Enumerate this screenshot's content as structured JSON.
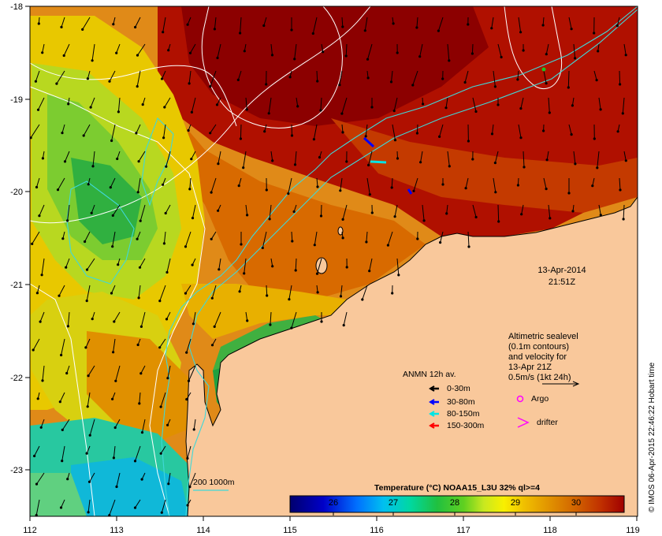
{
  "map": {
    "lon_ticks": [
      "112",
      "113",
      "114",
      "115",
      "116",
      "117",
      "118",
      "119"
    ],
    "lat_ticks": [
      "-18",
      "-19",
      "-20",
      "-21",
      "-22",
      "-23"
    ],
    "date": "13-Apr-2014",
    "time": "21:51Z",
    "altimetry_note": [
      "Altimetric sealevel",
      "(0.1m contours)",
      "and velocity for",
      "13-Apr 21Z",
      "0.5m/s (1kt 24h)"
    ],
    "anmn_title": "ANMN 12h av.",
    "anmn_items": [
      {
        "label": "0-30m",
        "color": "#000000"
      },
      {
        "label": "30-80m",
        "color": "#0000ff"
      },
      {
        "label": "80-150m",
        "color": "#00e5e5"
      },
      {
        "label": "150-300m",
        "color": "#ff0000"
      }
    ],
    "argo_label": "Argo",
    "drifter_label": "drifter",
    "isobath_label": "200  1000m",
    "colorbar": {
      "title": "Temperature (°C) NOAA15_L3U 32% ql>=4",
      "ticks": [
        "26",
        "27",
        "28",
        "29",
        "30"
      ]
    },
    "credit": "© IMOS 06-Apr-2015 22:46:22 Hobart time",
    "colors": {
      "land": "#f9c89b",
      "coast_line": "#000000",
      "isobath": "#40d8d8",
      "sealevel_contour": "#ffffff",
      "argo": "#ff00ff",
      "drifter": "#ff00ff"
    }
  }
}
